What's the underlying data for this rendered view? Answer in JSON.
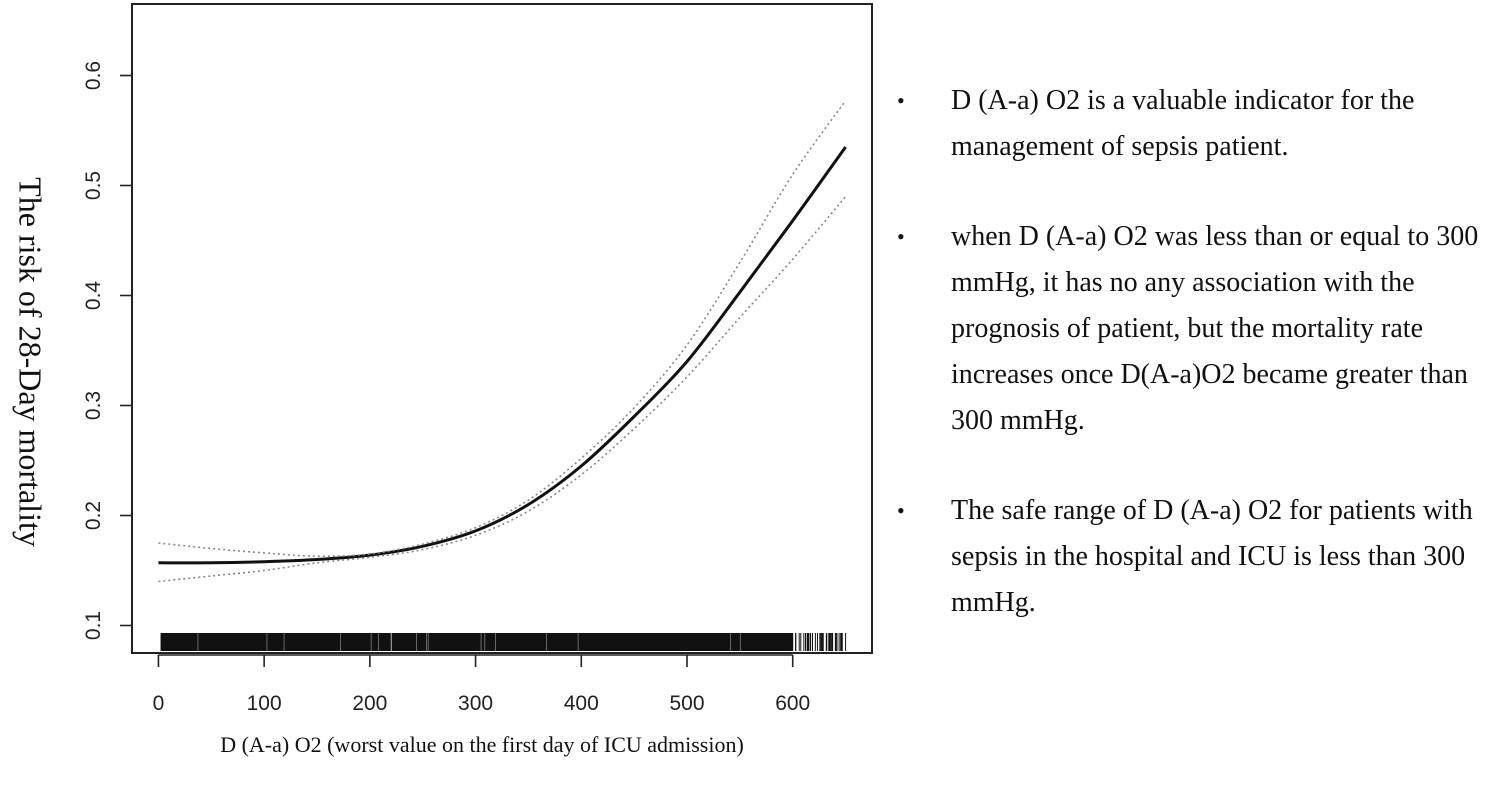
{
  "chart_data": {
    "type": "line",
    "xlabel": "D (A-a) O2 (worst value on the first day of ICU admission)",
    "ylabel": "The risk of 28-Day mortality",
    "xlim": [
      -25,
      675
    ],
    "ylim": [
      0.075,
      0.665
    ],
    "xticks": [
      0,
      100,
      200,
      300,
      400,
      500,
      600
    ],
    "yticks": [
      0.1,
      0.2,
      0.3,
      0.4,
      0.5,
      0.6
    ],
    "x": [
      0,
      50,
      100,
      150,
      200,
      250,
      300,
      350,
      400,
      450,
      500,
      550,
      600,
      650
    ],
    "series": [
      {
        "name": "estimate",
        "style": "solid",
        "values": [
          0.157,
          0.157,
          0.158,
          0.16,
          0.164,
          0.172,
          0.186,
          0.21,
          0.245,
          0.29,
          0.34,
          0.403,
          0.468,
          0.535
        ]
      },
      {
        "name": "upper 95% CI",
        "style": "dotted",
        "values": [
          0.175,
          0.17,
          0.166,
          0.163,
          0.165,
          0.174,
          0.189,
          0.214,
          0.252,
          0.298,
          0.355,
          0.43,
          0.51,
          0.577
        ]
      },
      {
        "name": "lower 95% CI",
        "style": "dotted",
        "values": [
          0.14,
          0.145,
          0.15,
          0.157,
          0.162,
          0.169,
          0.182,
          0.204,
          0.237,
          0.279,
          0.326,
          0.38,
          0.433,
          0.49
        ]
      }
    ],
    "rug": "dense tick marks from 0 to about 650"
  },
  "bullets": [
    "D (A-a) O2 is a valuable indicator for the management of sepsis patient.",
    "when D (A-a) O2 was less than or equal to 300 mmHg, it has no any association with the prognosis of patient, but the mortality rate increases once D(A-a)O2 became greater than 300 mmHg.",
    "The safe range of D (A-a) O2 for patients with sepsis in the hospital and ICU is less than 300 mmHg."
  ],
  "bullet_symbol": "•"
}
